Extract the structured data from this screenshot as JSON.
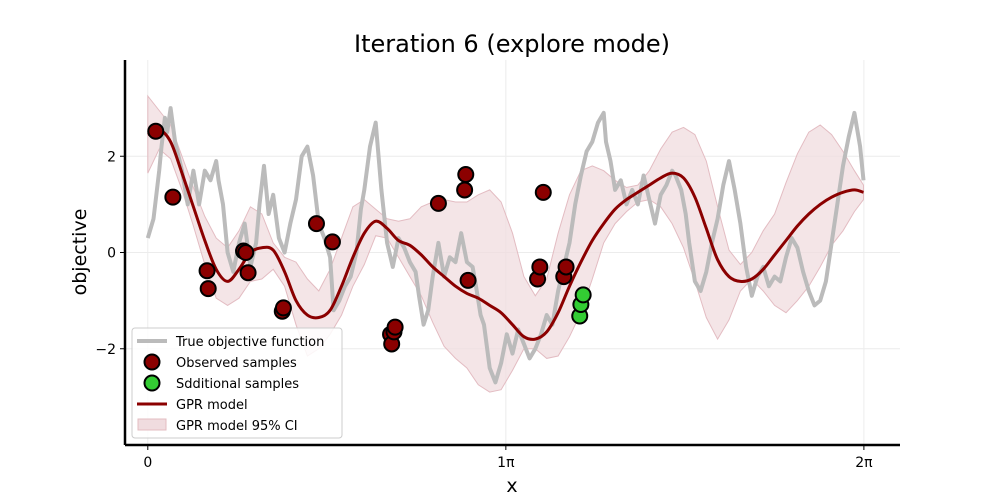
{
  "chart_data": {
    "type": "line",
    "title": "Iteration 6 (explore mode)",
    "xlabel": "x",
    "ylabel": "objective",
    "xlim": [
      -0.2,
      6.6
    ],
    "ylim": [
      -4.0,
      4.0
    ],
    "grid": true,
    "legend_position": "lower-left",
    "x_ticks": [
      {
        "value": 0,
        "label": "0"
      },
      {
        "value": 3.14159,
        "label": "1π"
      },
      {
        "value": 6.28319,
        "label": "2π"
      }
    ],
    "y_ticks": [
      {
        "value": -2,
        "label": "−2"
      },
      {
        "value": 0,
        "label": "0"
      },
      {
        "value": 2,
        "label": "2"
      }
    ],
    "legend": [
      {
        "key": "true",
        "label": "True objective function"
      },
      {
        "key": "observed",
        "label": "Observed samples"
      },
      {
        "key": "additional",
        "label": "Sdditional samples"
      },
      {
        "key": "gpr",
        "label": "GPR model"
      },
      {
        "key": "ci",
        "label": "GPR model 95% CI"
      }
    ],
    "colors": {
      "true": "#bbbbbb",
      "observed": "#8b0000",
      "additional": "#33cc33",
      "gpr": "#8b0000",
      "ci": "#f0dcdf",
      "ci_edge": "#e3bcc2"
    },
    "true_function": {
      "x": [
        0.0,
        0.05,
        0.1,
        0.12,
        0.15,
        0.17,
        0.2,
        0.24,
        0.3,
        0.35,
        0.4,
        0.45,
        0.5,
        0.55,
        0.6,
        0.62,
        0.66,
        0.7,
        0.75,
        0.8,
        0.85,
        0.9,
        0.95,
        0.98,
        1.02,
        1.06,
        1.1,
        1.15,
        1.2,
        1.25,
        1.3,
        1.35,
        1.4,
        1.45,
        1.5,
        1.55,
        1.6,
        1.63,
        1.68,
        1.73,
        1.78,
        1.83,
        1.87,
        1.9,
        1.95,
        2.0,
        2.05,
        2.1,
        2.15,
        2.2,
        2.25,
        2.3,
        2.35,
        2.38,
        2.42,
        2.46,
        2.5,
        2.55,
        2.6,
        2.65,
        2.7,
        2.75,
        2.8,
        2.85,
        2.88,
        2.92,
        2.95,
        3.0,
        3.05,
        3.1,
        3.15,
        3.2,
        3.25,
        3.3,
        3.35,
        3.4,
        3.45,
        3.5,
        3.55,
        3.6,
        3.65,
        3.7,
        3.75,
        3.8,
        3.85,
        3.9,
        3.95,
        4.0,
        4.02,
        4.06,
        4.1,
        4.15,
        4.2,
        4.25,
        4.3,
        4.35,
        4.4,
        4.45,
        4.5,
        4.55,
        4.6,
        4.63,
        4.68,
        4.72,
        4.75,
        4.8,
        4.85,
        4.9,
        4.95,
        5.0,
        5.05,
        5.1,
        5.15,
        5.2,
        5.25,
        5.3,
        5.35,
        5.4,
        5.45,
        5.5,
        5.55,
        5.6,
        5.65,
        5.7,
        5.75,
        5.8,
        5.85,
        5.9,
        5.95,
        6.0,
        6.05,
        6.1,
        6.15,
        6.2,
        6.25,
        6.28
      ],
      "y": [
        0.3,
        0.7,
        1.7,
        2.2,
        2.8,
        2.5,
        3.0,
        2.3,
        1.7,
        1.0,
        1.7,
        1.0,
        1.7,
        1.5,
        1.9,
        1.5,
        1.0,
        0.0,
        -0.4,
        0.2,
        0.6,
        -0.3,
        0.2,
        1.0,
        1.8,
        0.8,
        1.2,
        0.3,
        0.0,
        0.6,
        1.1,
        2.0,
        2.2,
        1.6,
        0.6,
        0.3,
        -0.1,
        -1.2,
        -1.0,
        -0.7,
        -0.5,
        0.0,
        0.9,
        1.3,
        2.2,
        2.7,
        1.3,
        0.2,
        -0.3,
        0.3,
        0.1,
        -0.2,
        -0.4,
        -0.9,
        -1.5,
        -1.2,
        -0.5,
        0.2,
        -0.5,
        -0.1,
        -0.2,
        0.4,
        -0.2,
        -0.3,
        -0.7,
        -1.3,
        -1.5,
        -2.4,
        -2.7,
        -2.3,
        -1.7,
        -2.1,
        -1.6,
        -1.9,
        -2.2,
        -2.0,
        -1.7,
        -1.3,
        -1.5,
        -0.8,
        -0.3,
        0.2,
        1.0,
        1.6,
        2.1,
        2.3,
        2.7,
        2.9,
        2.3,
        1.9,
        1.3,
        1.5,
        1.0,
        1.3,
        1.0,
        1.6,
        1.1,
        0.6,
        1.2,
        1.4,
        1.7,
        1.6,
        1.3,
        0.8,
        0.2,
        -0.6,
        -0.8,
        -0.4,
        0.2,
        0.7,
        1.4,
        1.9,
        1.3,
        0.6,
        -0.3,
        -0.9,
        -0.5,
        -0.3,
        -0.7,
        -0.5,
        -0.6,
        -0.1,
        0.3,
        0.1,
        -0.4,
        -0.8,
        -1.1,
        -1.0,
        -0.6,
        0.2,
        1.0,
        1.8,
        2.4,
        2.9,
        2.2,
        1.5
      ],
      "stroke_width": 4
    },
    "gpr_mean": {
      "x": [
        0.0,
        0.1,
        0.2,
        0.3,
        0.4,
        0.5,
        0.6,
        0.7,
        0.8,
        0.9,
        1.0,
        1.1,
        1.2,
        1.3,
        1.4,
        1.5,
        1.6,
        1.7,
        1.8,
        1.9,
        2.0,
        2.1,
        2.2,
        2.3,
        2.4,
        2.5,
        2.6,
        2.7,
        2.8,
        2.9,
        3.0,
        3.1,
        3.2,
        3.3,
        3.4,
        3.5,
        3.6,
        3.7,
        3.8,
        3.9,
        4.0,
        4.1,
        4.2,
        4.3,
        4.4,
        4.5,
        4.6,
        4.7,
        4.8,
        4.9,
        5.0,
        5.1,
        5.2,
        5.3,
        5.4,
        5.5,
        5.6,
        5.7,
        5.8,
        5.9,
        6.0,
        6.1,
        6.2,
        6.28
      ],
      "y": [
        2.45,
        2.55,
        2.3,
        1.65,
        0.95,
        0.25,
        -0.35,
        -0.6,
        -0.35,
        0.0,
        0.1,
        0.05,
        -0.4,
        -1.0,
        -1.3,
        -1.35,
        -1.2,
        -0.7,
        -0.1,
        0.4,
        0.65,
        0.5,
        0.25,
        0.15,
        -0.05,
        -0.3,
        -0.5,
        -0.7,
        -0.85,
        -0.95,
        -1.1,
        -1.25,
        -1.5,
        -1.75,
        -1.8,
        -1.65,
        -1.25,
        -0.7,
        -0.2,
        0.25,
        0.6,
        0.9,
        1.1,
        1.25,
        1.4,
        1.55,
        1.65,
        1.55,
        1.15,
        0.5,
        -0.15,
        -0.5,
        -0.6,
        -0.55,
        -0.35,
        -0.05,
        0.25,
        0.55,
        0.8,
        1.0,
        1.15,
        1.25,
        1.3,
        1.25
      ],
      "stroke_width": 3
    },
    "gpr_ci": {
      "x": [
        0.0,
        0.1,
        0.2,
        0.3,
        0.4,
        0.5,
        0.6,
        0.7,
        0.8,
        0.9,
        1.0,
        1.1,
        1.2,
        1.3,
        1.4,
        1.5,
        1.6,
        1.7,
        1.8,
        1.9,
        2.0,
        2.1,
        2.2,
        2.3,
        2.4,
        2.5,
        2.6,
        2.7,
        2.8,
        2.9,
        3.0,
        3.1,
        3.2,
        3.3,
        3.4,
        3.5,
        3.6,
        3.7,
        3.8,
        3.9,
        4.0,
        4.1,
        4.2,
        4.3,
        4.4,
        4.5,
        4.6,
        4.7,
        4.8,
        4.9,
        5.0,
        5.1,
        5.2,
        5.3,
        5.4,
        5.5,
        5.6,
        5.7,
        5.8,
        5.9,
        6.0,
        6.1,
        6.2,
        6.28
      ],
      "upper": [
        3.25,
        2.95,
        2.65,
        2.0,
        1.35,
        0.75,
        0.3,
        0.1,
        0.45,
        0.95,
        0.8,
        0.2,
        -0.1,
        -0.2,
        -0.55,
        -0.8,
        -0.35,
        0.3,
        0.95,
        1.1,
        0.9,
        0.7,
        0.65,
        0.7,
        0.95,
        1.05,
        1.1,
        1.05,
        1.05,
        1.2,
        1.3,
        1.05,
        0.4,
        -0.5,
        -0.9,
        -0.55,
        0.4,
        1.2,
        1.7,
        1.8,
        1.7,
        1.5,
        1.35,
        1.4,
        1.7,
        2.15,
        2.5,
        2.6,
        2.45,
        1.9,
        0.95,
        0.05,
        -0.25,
        0.0,
        0.45,
        0.8,
        1.45,
        2.05,
        2.5,
        2.65,
        2.45,
        2.1,
        1.7,
        1.4
      ],
      "lower": [
        1.65,
        2.15,
        1.95,
        1.3,
        0.55,
        -0.25,
        -0.95,
        -1.1,
        -0.95,
        -0.6,
        -0.55,
        -0.35,
        -0.7,
        -1.5,
        -2.15,
        -2.0,
        -1.7,
        -1.3,
        -0.7,
        -0.25,
        0.35,
        0.3,
        -0.1,
        -0.5,
        -0.9,
        -1.45,
        -1.95,
        -2.2,
        -2.4,
        -2.75,
        -2.9,
        -2.85,
        -2.45,
        -2.0,
        -2.0,
        -2.2,
        -2.15,
        -1.75,
        -1.25,
        -0.55,
        0.2,
        0.6,
        0.85,
        1.05,
        1.1,
        0.95,
        0.6,
        0.1,
        -0.6,
        -1.35,
        -1.8,
        -1.4,
        -0.8,
        -0.55,
        -0.8,
        -1.1,
        -1.25,
        -1.0,
        -0.7,
        -0.3,
        0.15,
        0.45,
        0.85,
        1.1
      ]
    },
    "observed_samples": {
      "x": [
        0.07,
        0.22,
        0.52,
        0.53,
        0.84,
        0.86,
        0.88,
        1.18,
        1.19,
        1.48,
        1.62,
        2.13,
        2.14,
        2.16,
        2.17,
        2.55,
        2.78,
        2.79,
        2.81,
        3.42,
        3.44,
        3.47,
        3.65,
        3.67
      ],
      "y": [
        2.52,
        1.15,
        -0.38,
        -0.75,
        0.03,
        0.0,
        -0.42,
        -1.22,
        -1.15,
        0.6,
        0.22,
        -1.7,
        -1.9,
        -1.65,
        -1.55,
        1.02,
        1.3,
        1.62,
        -0.58,
        -0.55,
        -0.3,
        1.25,
        -0.5,
        -0.3
      ],
      "note_display_overlap": "points 17-19 overlap 4.6-4.7 region"
    },
    "additional_samples": {
      "x": [
        3.79,
        3.8,
        3.82
      ],
      "y": [
        -1.32,
        -1.08,
        -0.88
      ]
    }
  }
}
